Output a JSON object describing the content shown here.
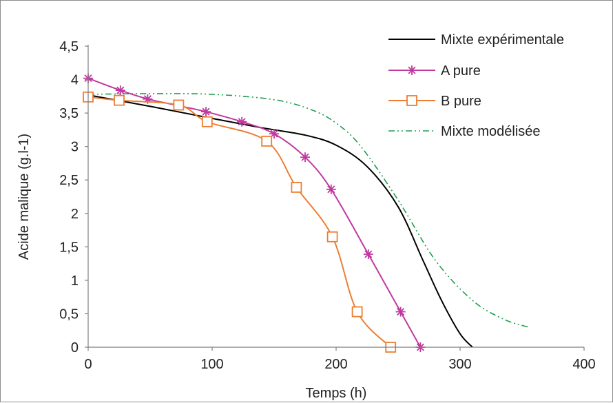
{
  "chart_data": {
    "type": "line",
    "xlabel": "Temps (h)",
    "ylabel": "Acide malique (g.l-1)",
    "xlim": [
      0,
      400
    ],
    "ylim": [
      0,
      4.5
    ],
    "xticks": [
      0,
      100,
      200,
      300,
      400
    ],
    "xtick_labels": [
      "0",
      "100",
      "200",
      "300",
      "400"
    ],
    "yticks": [
      0,
      0.5,
      1,
      1.5,
      2,
      2.5,
      3,
      3.5,
      4,
      4.5
    ],
    "ytick_labels": [
      "0",
      "0,5",
      "1",
      "1,5",
      "2",
      "2,5",
      "3",
      "3,5",
      "4",
      "4,5"
    ],
    "grid": false,
    "legend_position": "top-right",
    "series": [
      {
        "name": "Mixte expérimentale",
        "color": "#000000",
        "style": "solid",
        "marker": "none",
        "x": [
          0,
          50,
          100,
          140,
          175,
          200,
          225,
          250,
          270,
          285,
          300,
          310
        ],
        "y": [
          3.77,
          3.6,
          3.42,
          3.28,
          3.17,
          3.02,
          2.7,
          2.1,
          1.3,
          0.7,
          0.2,
          0.0
        ]
      },
      {
        "name": "A pure",
        "color": "#C0399F",
        "style": "solid",
        "marker": "asterisk",
        "x": [
          0,
          26,
          48,
          73,
          95,
          124,
          150,
          175,
          196,
          226,
          252,
          268
        ],
        "y": [
          4.02,
          3.84,
          3.71,
          3.61,
          3.52,
          3.37,
          3.19,
          2.84,
          2.36,
          1.39,
          0.53,
          0.0
        ]
      },
      {
        "name": "B pure",
        "color": "#ED7D31",
        "style": "solid",
        "marker": "square",
        "x": [
          0,
          25,
          73,
          96,
          144,
          168,
          197,
          217,
          244
        ],
        "y": [
          3.74,
          3.69,
          3.62,
          3.37,
          3.08,
          2.39,
          1.65,
          0.53,
          0.0
        ]
      },
      {
        "name": "Mixte modélisée",
        "color": "#1E9E4F",
        "style": "dash-dot-dot",
        "marker": "none",
        "x": [
          0,
          50,
          100,
          150,
          180,
          200,
          220,
          250,
          280,
          310,
          335,
          355
        ],
        "y": [
          3.78,
          3.79,
          3.78,
          3.7,
          3.55,
          3.35,
          3.0,
          2.2,
          1.3,
          0.7,
          0.42,
          0.3
        ]
      }
    ]
  }
}
